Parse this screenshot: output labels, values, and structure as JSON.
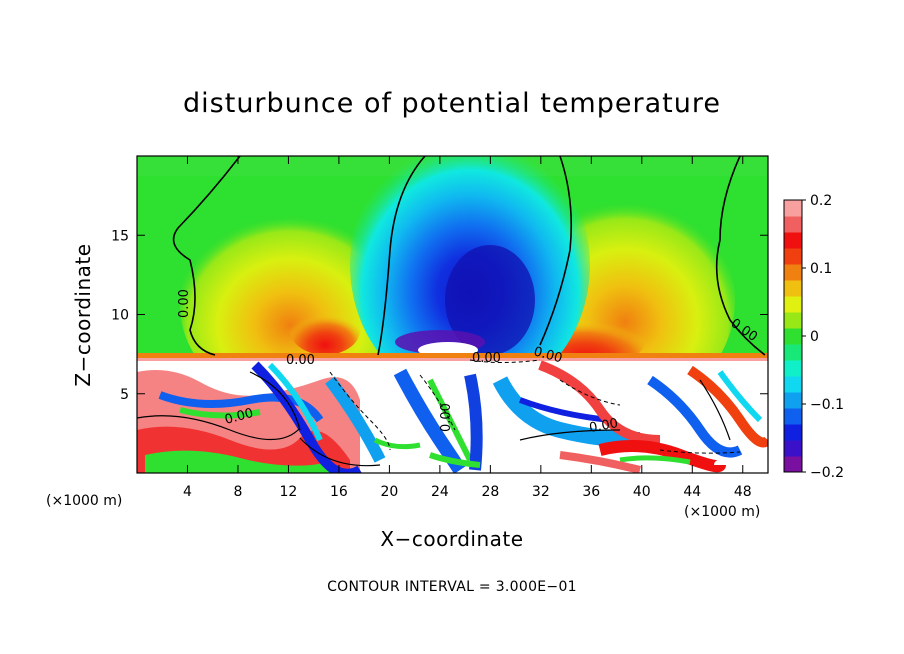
{
  "chart_data": {
    "type": "heatmap",
    "title": "disturbunce of potential temperature",
    "xlabel": "X−coordinate",
    "ylabel": "Z−coordinate",
    "x_unit": "(×1000 m)",
    "z_unit": "(×1000 m)",
    "xlim": [
      0,
      50
    ],
    "ylim": [
      0,
      20
    ],
    "x_ticks": [
      4,
      8,
      12,
      16,
      20,
      24,
      28,
      32,
      36,
      40,
      44,
      48
    ],
    "y_ticks": [
      5,
      10,
      15
    ],
    "colorbar": {
      "min": -0.2,
      "max": 0.2,
      "ticks": [
        {
          "value": 0.2,
          "label": "0.2"
        },
        {
          "value": 0.1,
          "label": "0.1"
        },
        {
          "value": 0.0,
          "label": "0"
        },
        {
          "value": -0.1,
          "label": "−0.1"
        },
        {
          "value": -0.2,
          "label": "−0.2"
        }
      ],
      "colors": [
        "#7a10a0",
        "#3a10c8",
        "#1020e0",
        "#1060f0",
        "#10a0f0",
        "#10d8f0",
        "#10f0c8",
        "#18e878",
        "#30e030",
        "#98e818",
        "#e0f010",
        "#f0c010",
        "#f08010",
        "#f04010",
        "#f01010",
        "#f06060",
        "#f8a0a0"
      ]
    },
    "contour_labels": [
      "0.00",
      "0.00",
      "0.00",
      "0.00",
      "0.00",
      "0.00",
      "0.00",
      "0.00",
      "0.00"
    ],
    "contour_interval": "CONTOUR INTERVAL = 3.000E−01",
    "notes": "Upper layer (z > 7.5 km): smooth field with cold anomaly (min about -0.2) centered near x=28 km, warm anomalies (about +0.1) near x=13 km and x=37 km. Lower layer (z < 7.5 km): turbulent field saturating the color scale."
  }
}
